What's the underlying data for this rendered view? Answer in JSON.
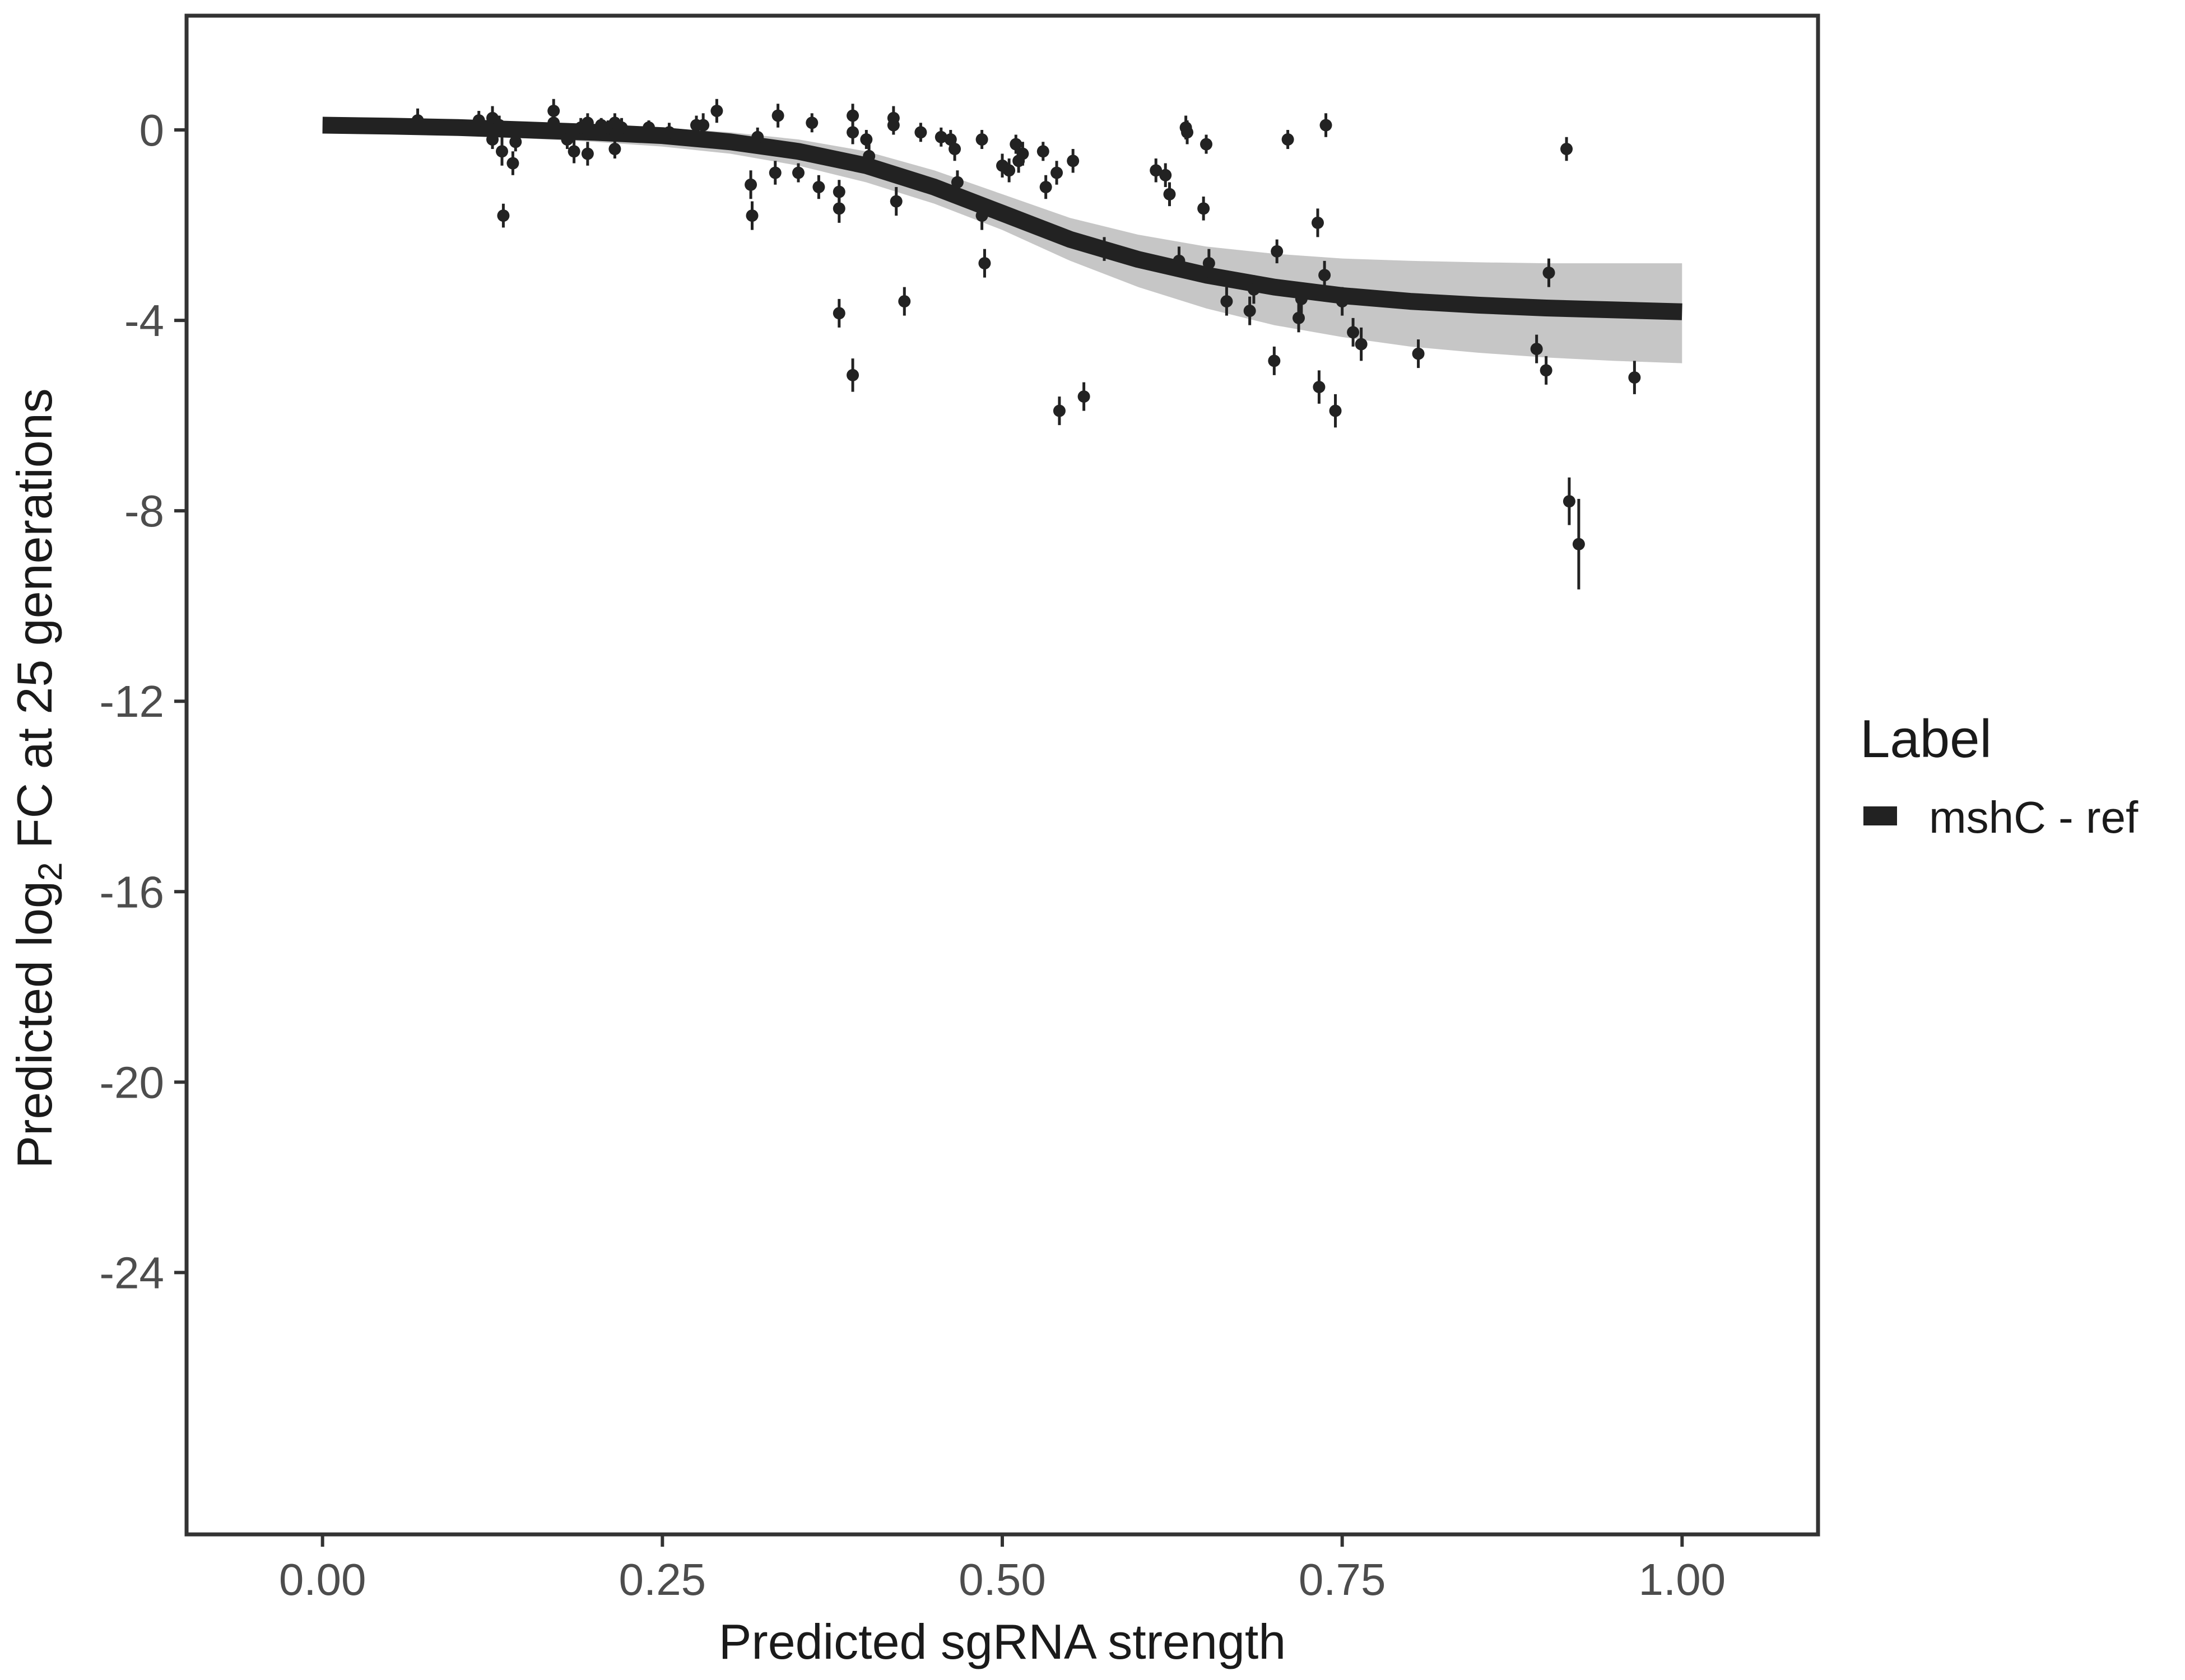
{
  "chart_data": {
    "type": "scatter",
    "xlabel": "Predicted sgRNA strength",
    "ylabel_prefix": "Predicted  log",
    "ylabel_sub": "2",
    "ylabel_suffix": " FC at 25 generations",
    "xlim": [
      -0.1,
      1.1
    ],
    "ylim": [
      -29.5,
      2.4
    ],
    "x_ticks": [
      0.0,
      0.25,
      0.5,
      0.75,
      1.0
    ],
    "x_tick_labels": [
      "0.00",
      "0.25",
      "0.50",
      "0.75",
      "1.00"
    ],
    "y_ticks": [
      0,
      -4,
      -8,
      -12,
      -16,
      -20,
      -24
    ],
    "y_tick_labels": [
      "0",
      "-4",
      "-8",
      "-12",
      "-16",
      "-20",
      "-24"
    ],
    "grid": false,
    "legend": {
      "title": "Label",
      "position": "right",
      "entries": [
        {
          "name": "mshC - ref",
          "color": "#222222"
        }
      ]
    },
    "colors": {
      "points": "#222222",
      "fit": "#222222",
      "band": "#b3b3b3",
      "frame": "#333333"
    },
    "fit_line": {
      "series": "mshC - ref",
      "x": [
        0.0,
        0.05,
        0.1,
        0.15,
        0.2,
        0.25,
        0.3,
        0.35,
        0.4,
        0.45,
        0.5,
        0.55,
        0.6,
        0.65,
        0.7,
        0.75,
        0.8,
        0.85,
        0.9,
        0.95,
        1.0
      ],
      "y": [
        0.1,
        0.08,
        0.05,
        0.0,
        -0.05,
        -0.12,
        -0.25,
        -0.45,
        -0.75,
        -1.2,
        -1.75,
        -2.3,
        -2.72,
        -3.05,
        -3.3,
        -3.48,
        -3.6,
        -3.68,
        -3.74,
        -3.78,
        -3.82
      ],
      "band_low": [
        -0.05,
        -0.08,
        -0.12,
        -0.18,
        -0.25,
        -0.35,
        -0.5,
        -0.75,
        -1.1,
        -1.55,
        -2.1,
        -2.75,
        -3.3,
        -3.75,
        -4.1,
        -4.35,
        -4.55,
        -4.68,
        -4.78,
        -4.85,
        -4.9
      ],
      "band_high": [
        0.2,
        0.18,
        0.16,
        0.13,
        0.1,
        0.05,
        -0.05,
        -0.2,
        -0.45,
        -0.85,
        -1.35,
        -1.85,
        -2.2,
        -2.45,
        -2.6,
        -2.7,
        -2.75,
        -2.78,
        -2.8,
        -2.8,
        -2.8
      ]
    },
    "points": [
      {
        "x": 0.07,
        "y": 0.2,
        "err": 0.25
      },
      {
        "x": 0.115,
        "y": 0.2,
        "err": 0.2
      },
      {
        "x": 0.125,
        "y": 0.25,
        "err": 0.25
      },
      {
        "x": 0.125,
        "y": -0.2,
        "err": 0.2
      },
      {
        "x": 0.13,
        "y": 0.1,
        "err": 0.2
      },
      {
        "x": 0.132,
        "y": -0.45,
        "err": 0.3
      },
      {
        "x": 0.133,
        "y": -1.8,
        "err": 0.25
      },
      {
        "x": 0.14,
        "y": -0.7,
        "err": 0.25
      },
      {
        "x": 0.142,
        "y": -0.25,
        "err": 0.2
      },
      {
        "x": 0.17,
        "y": 0.4,
        "err": 0.25
      },
      {
        "x": 0.17,
        "y": 0.15,
        "err": 0.2
      },
      {
        "x": 0.18,
        "y": -0.2,
        "err": 0.2
      },
      {
        "x": 0.185,
        "y": -0.45,
        "err": 0.25
      },
      {
        "x": 0.19,
        "y": 0.05,
        "err": 0.2
      },
      {
        "x": 0.195,
        "y": 0.15,
        "err": 0.2
      },
      {
        "x": 0.195,
        "y": -0.5,
        "err": 0.25
      },
      {
        "x": 0.205,
        "y": 0.1,
        "err": 0.15
      },
      {
        "x": 0.21,
        "y": 0.05,
        "err": 0.15
      },
      {
        "x": 0.215,
        "y": -0.4,
        "err": 0.2
      },
      {
        "x": 0.215,
        "y": 0.15,
        "err": 0.2
      },
      {
        "x": 0.22,
        "y": 0.05,
        "err": 0.2
      },
      {
        "x": 0.24,
        "y": 0.05,
        "err": 0.15
      },
      {
        "x": 0.255,
        "y": -0.05,
        "err": 0.2
      },
      {
        "x": 0.275,
        "y": 0.1,
        "err": 0.2
      },
      {
        "x": 0.28,
        "y": 0.1,
        "err": 0.25
      },
      {
        "x": 0.29,
        "y": 0.4,
        "err": 0.25
      },
      {
        "x": 0.315,
        "y": -1.15,
        "err": 0.3
      },
      {
        "x": 0.316,
        "y": -1.8,
        "err": 0.3
      },
      {
        "x": 0.32,
        "y": -0.15,
        "err": 0.2
      },
      {
        "x": 0.333,
        "y": -0.9,
        "err": 0.25
      },
      {
        "x": 0.335,
        "y": 0.3,
        "err": 0.25
      },
      {
        "x": 0.35,
        "y": -0.9,
        "err": 0.2
      },
      {
        "x": 0.36,
        "y": 0.15,
        "err": 0.2
      },
      {
        "x": 0.365,
        "y": -1.2,
        "err": 0.25
      },
      {
        "x": 0.38,
        "y": -1.3,
        "err": 0.25
      },
      {
        "x": 0.38,
        "y": -1.65,
        "err": 0.3
      },
      {
        "x": 0.38,
        "y": -3.85,
        "err": 0.3
      },
      {
        "x": 0.39,
        "y": 0.3,
        "err": 0.25
      },
      {
        "x": 0.39,
        "y": -5.15,
        "err": 0.35
      },
      {
        "x": 0.39,
        "y": -0.05,
        "err": 0.25
      },
      {
        "x": 0.4,
        "y": -0.2,
        "err": 0.2
      },
      {
        "x": 0.402,
        "y": -0.55,
        "err": 0.25
      },
      {
        "x": 0.42,
        "y": 0.25,
        "err": 0.25
      },
      {
        "x": 0.42,
        "y": 0.1,
        "err": 0.2
      },
      {
        "x": 0.422,
        "y": -1.5,
        "err": 0.3
      },
      {
        "x": 0.428,
        "y": -3.6,
        "err": 0.3
      },
      {
        "x": 0.44,
        "y": -0.05,
        "err": 0.2
      },
      {
        "x": 0.455,
        "y": -0.15,
        "err": 0.2
      },
      {
        "x": 0.462,
        "y": -0.2,
        "err": 0.2
      },
      {
        "x": 0.465,
        "y": -0.4,
        "err": 0.25
      },
      {
        "x": 0.467,
        "y": -1.1,
        "err": 0.25
      },
      {
        "x": 0.485,
        "y": -0.2,
        "err": 0.2
      },
      {
        "x": 0.485,
        "y": -1.8,
        "err": 0.3
      },
      {
        "x": 0.487,
        "y": -2.8,
        "err": 0.3
      },
      {
        "x": 0.5,
        "y": -0.75,
        "err": 0.25
      },
      {
        "x": 0.505,
        "y": -0.85,
        "err": 0.25
      },
      {
        "x": 0.51,
        "y": -0.3,
        "err": 0.2
      },
      {
        "x": 0.512,
        "y": -0.65,
        "err": 0.25
      },
      {
        "x": 0.515,
        "y": -0.5,
        "err": 0.25
      },
      {
        "x": 0.53,
        "y": -0.45,
        "err": 0.2
      },
      {
        "x": 0.532,
        "y": -1.2,
        "err": 0.25
      },
      {
        "x": 0.54,
        "y": -0.9,
        "err": 0.25
      },
      {
        "x": 0.542,
        "y": -5.9,
        "err": 0.3
      },
      {
        "x": 0.552,
        "y": -0.65,
        "err": 0.25
      },
      {
        "x": 0.56,
        "y": -5.6,
        "err": 0.3
      },
      {
        "x": 0.575,
        "y": -2.5,
        "err": 0.25
      },
      {
        "x": 0.613,
        "y": -0.85,
        "err": 0.25
      },
      {
        "x": 0.62,
        "y": -0.95,
        "err": 0.25
      },
      {
        "x": 0.623,
        "y": -1.35,
        "err": 0.25
      },
      {
        "x": 0.63,
        "y": -2.75,
        "err": 0.3
      },
      {
        "x": 0.635,
        "y": 0.05,
        "err": 0.25
      },
      {
        "x": 0.636,
        "y": -0.05,
        "err": 0.25
      },
      {
        "x": 0.648,
        "y": -1.65,
        "err": 0.25
      },
      {
        "x": 0.65,
        "y": -0.3,
        "err": 0.2
      },
      {
        "x": 0.652,
        "y": -2.8,
        "err": 0.3
      },
      {
        "x": 0.665,
        "y": -3.6,
        "err": 0.3
      },
      {
        "x": 0.682,
        "y": -3.8,
        "err": 0.3
      },
      {
        "x": 0.685,
        "y": -3.35,
        "err": 0.3
      },
      {
        "x": 0.7,
        "y": -4.85,
        "err": 0.3
      },
      {
        "x": 0.702,
        "y": -2.55,
        "err": 0.25
      },
      {
        "x": 0.71,
        "y": -0.2,
        "err": 0.2
      },
      {
        "x": 0.718,
        "y": -3.95,
        "err": 0.3
      },
      {
        "x": 0.72,
        "y": -3.55,
        "err": 0.3
      },
      {
        "x": 0.732,
        "y": -1.95,
        "err": 0.3
      },
      {
        "x": 0.733,
        "y": -5.4,
        "err": 0.35
      },
      {
        "x": 0.737,
        "y": -3.05,
        "err": 0.3
      },
      {
        "x": 0.738,
        "y": 0.1,
        "err": 0.25
      },
      {
        "x": 0.745,
        "y": -5.9,
        "err": 0.35
      },
      {
        "x": 0.75,
        "y": -3.6,
        "err": 0.3
      },
      {
        "x": 0.758,
        "y": -4.25,
        "err": 0.3
      },
      {
        "x": 0.764,
        "y": -4.5,
        "err": 0.35
      },
      {
        "x": 0.806,
        "y": -4.7,
        "err": 0.3
      },
      {
        "x": 0.893,
        "y": -4.6,
        "err": 0.3
      },
      {
        "x": 0.9,
        "y": -5.05,
        "err": 0.3
      },
      {
        "x": 0.902,
        "y": -3.0,
        "err": 0.3
      },
      {
        "x": 0.915,
        "y": -0.4,
        "err": 0.25
      },
      {
        "x": 0.917,
        "y": -7.8,
        "err": 0.5
      },
      {
        "x": 0.924,
        "y": -8.7,
        "err": 0.95
      },
      {
        "x": 0.965,
        "y": -5.2,
        "err": 0.35
      }
    ]
  }
}
